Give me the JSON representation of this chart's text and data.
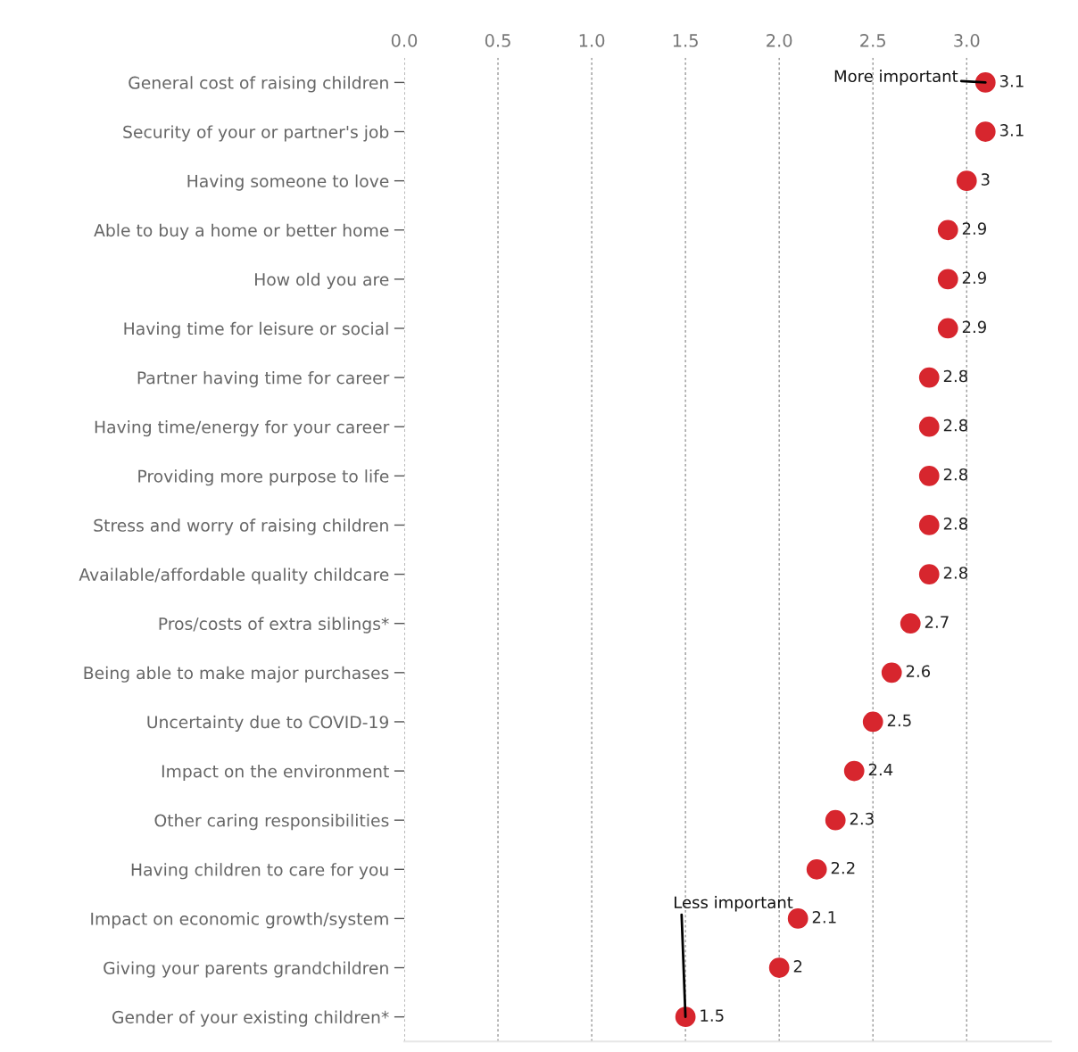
{
  "chart_data": {
    "type": "scatter",
    "orientation": "horizontal",
    "categories": [
      "General cost of raising children",
      "Security of your or partner's job",
      "Having someone to love",
      "Able to buy a home or better home",
      "How old you are",
      "Having time for leisure or social",
      "Partner having time for career",
      "Having time/energy for your career",
      "Providing more purpose to life",
      "Stress and worry of raising children",
      "Available/affordable quality childcare",
      "Pros/costs of extra siblings*",
      "Being able to make major purchases",
      "Uncertainty due to COVID-19",
      "Impact on the environment",
      "Other caring responsibilities",
      "Having children to care for you",
      "Impact on economic growth/system",
      "Giving your parents grandchildren",
      "Gender of your existing children*"
    ],
    "values": [
      3.1,
      3.1,
      3,
      2.9,
      2.9,
      2.9,
      2.8,
      2.8,
      2.8,
      2.8,
      2.8,
      2.7,
      2.6,
      2.5,
      2.4,
      2.3,
      2.2,
      2.1,
      2,
      1.5
    ],
    "color": "#d7262e",
    "marker": "circle",
    "data_labels": true,
    "xlim": [
      0,
      3.45
    ],
    "xticks": [
      {
        "value": 0,
        "label": "0.0"
      },
      {
        "value": 0.5,
        "label": "0.5"
      },
      {
        "value": 1,
        "label": "1.0"
      },
      {
        "value": 1.5,
        "label": "1.5"
      },
      {
        "value": 2,
        "label": "2.0"
      },
      {
        "value": 2.5,
        "label": "2.5"
      },
      {
        "value": 3,
        "label": "3.0"
      }
    ],
    "grid": "x",
    "annotations": [
      {
        "text": "More important",
        "x": 3.1,
        "y": "General cost of raising children"
      },
      {
        "text": "Less important",
        "x": 1.5,
        "y": "Gender of your existing children*"
      }
    ]
  }
}
